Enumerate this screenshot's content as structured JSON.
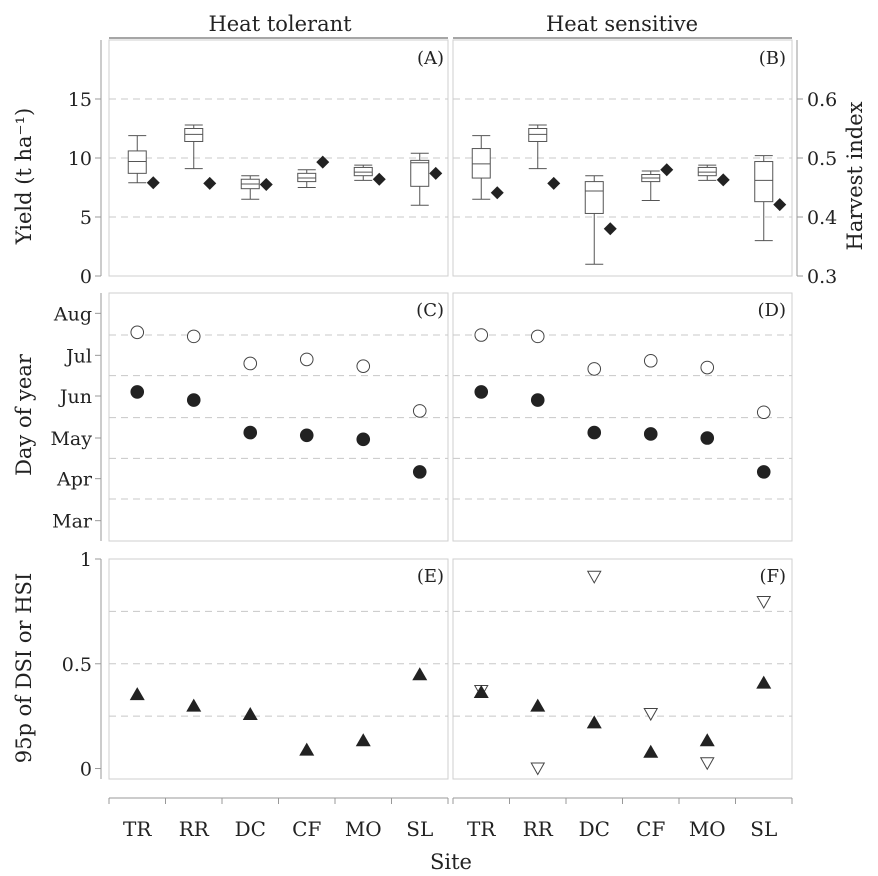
{
  "strips": [
    "Heat tolerant",
    "Heat sensitive"
  ],
  "panel_labels": [
    "(A)",
    "(B)",
    "(C)",
    "(D)",
    "(E)",
    "(F)"
  ],
  "axis_titles": {
    "yield": "Yield (t ha⁻¹)",
    "harvest_index": "Harvest index",
    "doy": "Day of year",
    "dsi": "95p of DSI or HSI",
    "x": "Site"
  },
  "colors": {
    "axis": "#999999",
    "grid": "#c8c8c8",
    "ink": "#222222"
  },
  "chart_data": [
    {
      "type": "box",
      "row": "yield",
      "ylabel": "Yield (t ha⁻¹)",
      "y2label": "Harvest index",
      "ylim": [
        0,
        20
      ],
      "yticks": [
        0,
        5,
        10,
        15
      ],
      "y2lim": [
        0.3,
        0.7
      ],
      "y2ticks": [
        0.3,
        0.4,
        0.5,
        0.6
      ],
      "grid_y": [
        5,
        10,
        15
      ],
      "categories": [
        "TR",
        "RR",
        "DC",
        "CF",
        "MO",
        "SL"
      ],
      "panels": [
        {
          "label": "(A)",
          "strip": "Heat tolerant",
          "boxes": [
            {
              "site": "TR",
              "min": 7.9,
              "q1": 8.7,
              "median": 9.7,
              "q3": 10.6,
              "max": 11.9
            },
            {
              "site": "RR",
              "min": 9.1,
              "q1": 11.4,
              "median": 12.0,
              "q3": 12.5,
              "max": 12.8
            },
            {
              "site": "DC",
              "min": 6.5,
              "q1": 7.4,
              "median": 7.8,
              "q3": 8.2,
              "max": 8.5
            },
            {
              "site": "CF",
              "min": 7.5,
              "q1": 8.0,
              "median": 8.3,
              "q3": 8.7,
              "max": 9.0
            },
            {
              "site": "MO",
              "min": 8.1,
              "q1": 8.5,
              "median": 8.8,
              "q3": 9.2,
              "max": 9.4
            },
            {
              "site": "SL",
              "min": 6.0,
              "q1": 7.6,
              "median": 9.6,
              "q3": 9.8,
              "max": 10.4
            }
          ],
          "harvest_index": [
            0.458,
            0.457,
            0.455,
            0.493,
            0.464,
            0.474
          ]
        },
        {
          "label": "(B)",
          "strip": "Heat sensitive",
          "boxes": [
            {
              "site": "TR",
              "min": 6.5,
              "q1": 8.3,
              "median": 9.5,
              "q3": 10.8,
              "max": 11.9
            },
            {
              "site": "RR",
              "min": 9.1,
              "q1": 11.4,
              "median": 12.0,
              "q3": 12.5,
              "max": 12.8
            },
            {
              "site": "DC",
              "min": 1.0,
              "q1": 5.3,
              "median": 7.2,
              "q3": 8.0,
              "max": 8.5
            },
            {
              "site": "CF",
              "min": 6.4,
              "q1": 8.0,
              "median": 8.3,
              "q3": 8.6,
              "max": 8.9
            },
            {
              "site": "MO",
              "min": 8.1,
              "q1": 8.5,
              "median": 8.8,
              "q3": 9.2,
              "max": 9.4
            },
            {
              "site": "SL",
              "min": 3.0,
              "q1": 6.3,
              "median": 8.1,
              "q3": 9.7,
              "max": 10.2
            }
          ],
          "harvest_index": [
            0.441,
            0.457,
            0.38,
            0.48,
            0.463,
            0.421
          ]
        }
      ]
    },
    {
      "type": "scatter",
      "row": "dates",
      "ylabel": "Day of year",
      "ylim": [
        45,
        228
      ],
      "yticks": [
        {
          "value": 60,
          "label": "Mar"
        },
        {
          "value": 91,
          "label": "Apr"
        },
        {
          "value": 121,
          "label": "May"
        },
        {
          "value": 152,
          "label": "Jun"
        },
        {
          "value": 182,
          "label": "Jul"
        },
        {
          "value": 213,
          "label": "Aug"
        }
      ],
      "grid_y": [
        76,
        106,
        136,
        167,
        197
      ],
      "categories": [
        "TR",
        "RR",
        "DC",
        "CF",
        "MO",
        "SL"
      ],
      "panels": [
        {
          "label": "(C)",
          "strip": "Heat tolerant",
          "open_circles": [
            199,
            196,
            176,
            179,
            174,
            141
          ],
          "filled_circles": [
            155,
            149,
            125,
            123,
            120,
            96
          ]
        },
        {
          "label": "(D)",
          "strip": "Heat sensitive",
          "open_circles": [
            197,
            196,
            172,
            178,
            173,
            140
          ],
          "filled_circles": [
            155,
            149,
            125,
            124,
            121,
            96
          ]
        }
      ]
    },
    {
      "type": "scatter",
      "row": "stress",
      "ylabel": "95p of DSI or HSI",
      "ylim": [
        -0.05,
        1.0
      ],
      "yticks": [
        0,
        0.5,
        1
      ],
      "grid_y": [
        0.25,
        0.5,
        0.75
      ],
      "categories": [
        "TR",
        "RR",
        "DC",
        "CF",
        "MO",
        "SL"
      ],
      "xlabel": "Site",
      "panels": [
        {
          "label": "(E)",
          "strip": "Heat tolerant",
          "filled_triangles": [
            0.355,
            0.3,
            0.26,
            0.09,
            0.135,
            0.45
          ]
        },
        {
          "label": "(F)",
          "strip": "Heat sensitive",
          "filled_triangles": [
            0.365,
            0.3,
            0.22,
            0.08,
            0.135,
            0.41
          ],
          "open_triangles": [
            0.37,
            0.0,
            0.915,
            0.26,
            0.025,
            0.795
          ]
        }
      ]
    }
  ]
}
